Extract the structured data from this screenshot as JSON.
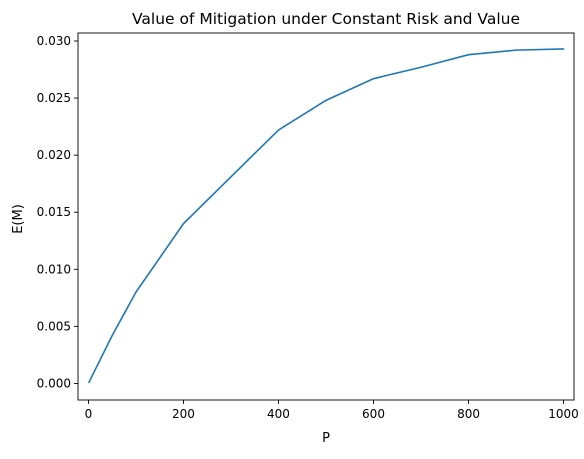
{
  "chart_data": {
    "type": "line",
    "title": "Value of Mitigation under Constant Risk and Value",
    "xlabel": "P",
    "ylabel": "E(M)",
    "xlim": [
      -22,
      1022
    ],
    "ylim": [
      -0.00145,
      0.0307
    ],
    "x_ticks": [
      0,
      200,
      400,
      600,
      800,
      1000
    ],
    "x_tick_labels": [
      "0",
      "200",
      "400",
      "600",
      "800",
      "1000"
    ],
    "y_ticks": [
      0.0,
      0.005,
      0.01,
      0.015,
      0.02,
      0.025,
      0.03
    ],
    "y_tick_labels": [
      "0.000",
      "0.005",
      "0.010",
      "0.015",
      "0.020",
      "0.025",
      "0.030"
    ],
    "grid": false,
    "legend": "none",
    "series": [
      {
        "color": "#1f77b4",
        "x": [
          1,
          50,
          100,
          200,
          300,
          400,
          500,
          600,
          700,
          800,
          900,
          1000
        ],
        "y": [
          0.0001,
          0.0042,
          0.008,
          0.014,
          0.0181,
          0.0222,
          0.0248,
          0.0267,
          0.0277,
          0.0288,
          0.0292,
          0.0293
        ]
      }
    ]
  }
}
